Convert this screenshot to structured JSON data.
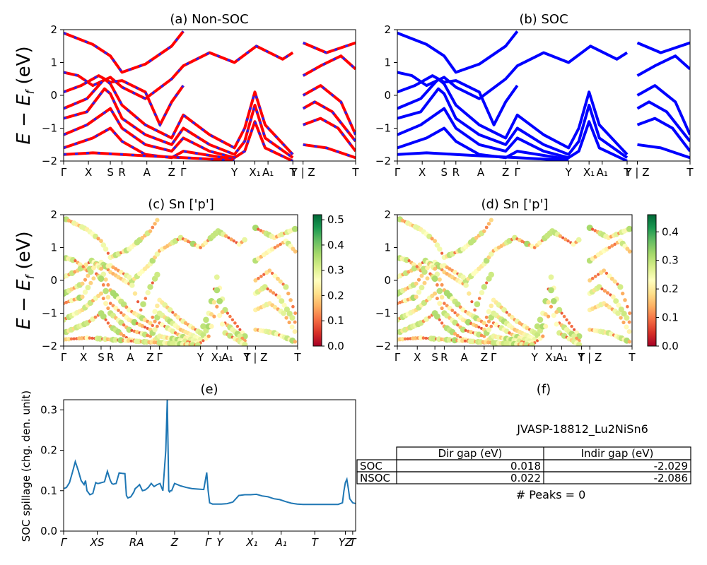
{
  "chart_data": [
    {
      "id": "a",
      "type": "line",
      "title": "(a) Non-SOC",
      "ylabel": "E − E_f (eV)",
      "ylim": [
        -2,
        2
      ],
      "yticks": [
        -2,
        -1,
        0,
        1,
        2
      ],
      "kpath_labels": [
        "Γ",
        "X",
        "S",
        "R",
        "A",
        "Z",
        "Γ",
        "Y",
        "X₁",
        "A₁",
        "T",
        "Y | Z",
        "T"
      ],
      "kpath_x": [
        0,
        0.085,
        0.16,
        0.2,
        0.285,
        0.37,
        0.41,
        0.585,
        0.655,
        0.7,
        0.785,
        0.82,
        1.0
      ],
      "series": [
        {
          "color": "#ff0000",
          "style": "solid",
          "bands": [
            [
              [
                0,
                1.9
              ],
              [
                0.1,
                1.55
              ],
              [
                0.16,
                1.2
              ],
              [
                0.2,
                0.7
              ],
              [
                0.28,
                0.95
              ],
              [
                0.37,
                1.5
              ],
              [
                0.41,
                1.95
              ]
            ],
            [
              [
                0,
                0.7
              ],
              [
                0.05,
                0.6
              ],
              [
                0.1,
                0.3
              ],
              [
                0.16,
                0.55
              ],
              [
                0.2,
                0.25
              ],
              [
                0.28,
                -0.1
              ],
              [
                0.37,
                0.5
              ],
              [
                0.41,
                0.9
              ],
              [
                0.5,
                1.3
              ],
              [
                0.585,
                1.0
              ],
              [
                0.66,
                1.5
              ],
              [
                0.75,
                1.1
              ],
              [
                0.785,
                1.3
              ]
            ],
            [
              [
                0,
                0.1
              ],
              [
                0.06,
                0.3
              ],
              [
                0.12,
                0.6
              ],
              [
                0.16,
                0.4
              ],
              [
                0.2,
                0.45
              ],
              [
                0.28,
                0.1
              ],
              [
                0.33,
                -0.9
              ],
              [
                0.37,
                -0.2
              ],
              [
                0.41,
                0.3
              ]
            ],
            [
              [
                0,
                -0.4
              ],
              [
                0.08,
                -0.1
              ],
              [
                0.14,
                0.5
              ],
              [
                0.16,
                0.35
              ],
              [
                0.2,
                -0.3
              ],
              [
                0.28,
                -0.9
              ],
              [
                0.37,
                -1.3
              ],
              [
                0.41,
                -0.6
              ],
              [
                0.5,
                -1.2
              ],
              [
                0.585,
                -1.6
              ],
              [
                0.62,
                -1.0
              ],
              [
                0.655,
                0.1
              ],
              [
                0.69,
                -0.9
              ],
              [
                0.785,
                -1.8
              ]
            ],
            [
              [
                0,
                -0.7
              ],
              [
                0.08,
                -0.5
              ],
              [
                0.14,
                0.2
              ],
              [
                0.16,
                0.05
              ],
              [
                0.2,
                -0.7
              ],
              [
                0.28,
                -1.2
              ],
              [
                0.37,
                -1.5
              ],
              [
                0.41,
                -1.0
              ],
              [
                0.5,
                -1.5
              ],
              [
                0.585,
                -1.8
              ],
              [
                0.62,
                -1.4
              ],
              [
                0.655,
                -0.3
              ],
              [
                0.69,
                -1.3
              ],
              [
                0.785,
                -1.9
              ]
            ],
            [
              [
                0,
                -1.2
              ],
              [
                0.08,
                -0.9
              ],
              [
                0.16,
                -0.4
              ],
              [
                0.2,
                -1.0
              ],
              [
                0.28,
                -1.5
              ],
              [
                0.37,
                -1.7
              ],
              [
                0.41,
                -1.3
              ],
              [
                0.5,
                -1.7
              ],
              [
                0.585,
                -1.9
              ],
              [
                0.62,
                -1.7
              ],
              [
                0.655,
                -0.8
              ],
              [
                0.69,
                -1.6
              ],
              [
                0.785,
                -2.0
              ]
            ],
            [
              [
                0,
                -1.6
              ],
              [
                0.1,
                -1.3
              ],
              [
                0.16,
                -1.0
              ],
              [
                0.2,
                -1.4
              ],
              [
                0.28,
                -1.8
              ],
              [
                0.37,
                -1.9
              ],
              [
                0.41,
                -1.7
              ],
              [
                0.585,
                -1.95
              ]
            ],
            [
              [
                0,
                -1.8
              ],
              [
                0.1,
                -1.75
              ],
              [
                0.2,
                -1.8
              ],
              [
                0.3,
                -1.85
              ],
              [
                0.41,
                -1.9
              ],
              [
                0.585,
                -1.98
              ]
            ],
            [
              [
                0.82,
                -0.4
              ],
              [
                0.86,
                -0.2
              ],
              [
                0.92,
                -0.5
              ],
              [
                1.0,
                -1.4
              ]
            ],
            [
              [
                0.82,
                -0.9
              ],
              [
                0.88,
                -0.7
              ],
              [
                0.94,
                -1.0
              ],
              [
                1.0,
                -1.7
              ]
            ],
            [
              [
                0.82,
                0.6
              ],
              [
                0.88,
                0.9
              ],
              [
                0.95,
                1.2
              ],
              [
                1.0,
                0.8
              ]
            ],
            [
              [
                0.82,
                0.0
              ],
              [
                0.88,
                0.3
              ],
              [
                0.95,
                -0.2
              ],
              [
                1.0,
                -1.2
              ]
            ],
            [
              [
                0.82,
                -1.5
              ],
              [
                0.9,
                -1.6
              ],
              [
                1.0,
                -1.9
              ]
            ],
            [
              [
                0.82,
                1.6
              ],
              [
                0.9,
                1.3
              ],
              [
                1.0,
                1.6
              ]
            ]
          ]
        }
      ]
    },
    {
      "id": "b",
      "type": "line",
      "title": "(b) SOC",
      "ylim": [
        -2,
        2
      ],
      "yticks": [
        -2,
        -1,
        0,
        1,
        2
      ],
      "kpath_labels": [
        "Γ",
        "X",
        "S",
        "R",
        "A",
        "Z",
        "Γ",
        "Y",
        "X₁",
        "A₁",
        "T",
        "Y | Z",
        "T"
      ],
      "kpath_x": [
        0,
        0.085,
        0.16,
        0.2,
        0.285,
        0.37,
        0.41,
        0.585,
        0.655,
        0.7,
        0.785,
        0.82,
        1.0
      ],
      "series": [
        {
          "color": "#0000ff",
          "style": "solid",
          "bands": "same-as-a"
        }
      ]
    },
    {
      "id": "c",
      "type": "scatter",
      "title": "(c)  Sn ['p']",
      "ylabel": "E − E_f (eV)",
      "ylim": [
        -2,
        2
      ],
      "yticks": [
        -2,
        -1,
        0,
        1,
        2
      ],
      "kpath_labels": [
        "Γ",
        "X",
        "S",
        "R",
        "A",
        "Z",
        "Γ",
        "Y",
        "X₁",
        "A₁",
        "T",
        "Y | Z",
        "T"
      ],
      "kpath_x": [
        0,
        0.085,
        0.16,
        0.2,
        0.285,
        0.37,
        0.41,
        0.585,
        0.655,
        0.7,
        0.785,
        0.82,
        1.0
      ],
      "colorbar": {
        "ticks": [
          0.0,
          0.1,
          0.2,
          0.3,
          0.4,
          0.5
        ],
        "max": 0.52,
        "cmap": "RdYlGn"
      }
    },
    {
      "id": "d",
      "type": "scatter",
      "title": "(d) Sn ['p']",
      "ylim": [
        -2,
        2
      ],
      "yticks": [
        -2,
        -1,
        0,
        1,
        2
      ],
      "kpath_labels": [
        "Γ",
        "X",
        "S",
        "R",
        "A",
        "Z",
        "Γ",
        "Y",
        "X₁",
        "A₁",
        "T",
        "Y | Z",
        "T"
      ],
      "kpath_x": [
        0,
        0.085,
        0.16,
        0.2,
        0.285,
        0.37,
        0.41,
        0.585,
        0.655,
        0.7,
        0.785,
        0.82,
        1.0
      ],
      "colorbar": {
        "ticks": [
          0.0,
          0.1,
          0.2,
          0.3,
          0.4
        ],
        "max": 0.46,
        "cmap": "RdYlGn"
      }
    },
    {
      "id": "e",
      "type": "line",
      "title": "(e)",
      "ylabel": "SOC spillage (chg. den. unit)",
      "ylim": [
        0.0,
        0.325
      ],
      "yticks": [
        0.0,
        0.1,
        0.2,
        0.3
      ],
      "xtick_labels": [
        "Γ",
        "XS",
        "RA",
        "Z",
        "Γ",
        "Y",
        "X₁",
        "A₁",
        "T",
        "YZ",
        "T"
      ],
      "xtick_x": [
        0,
        0.115,
        0.25,
        0.38,
        0.495,
        0.535,
        0.645,
        0.745,
        0.86,
        0.965,
        0.99
      ],
      "series": [
        {
          "color": "#1f77b4",
          "x": [
            0,
            0.01,
            0.02,
            0.03,
            0.04,
            0.05,
            0.06,
            0.07,
            0.075,
            0.08,
            0.09,
            0.1,
            0.11,
            0.115,
            0.12,
            0.13,
            0.14,
            0.15,
            0.16,
            0.165,
            0.17,
            0.18,
            0.19,
            0.2,
            0.21,
            0.215,
            0.22,
            0.23,
            0.24,
            0.245,
            0.25,
            0.26,
            0.27,
            0.28,
            0.29,
            0.3,
            0.31,
            0.32,
            0.33,
            0.34,
            0.35,
            0.355,
            0.36,
            0.363,
            0.366,
            0.37,
            0.38,
            0.39,
            0.4,
            0.42,
            0.44,
            0.46,
            0.48,
            0.49,
            0.495,
            0.5,
            0.51,
            0.52,
            0.54,
            0.56,
            0.58,
            0.6,
            0.62,
            0.64,
            0.66,
            0.68,
            0.7,
            0.72,
            0.74,
            0.76,
            0.78,
            0.8,
            0.82,
            0.84,
            0.86,
            0.88,
            0.9,
            0.92,
            0.94,
            0.955,
            0.96,
            0.965,
            0.97,
            0.975,
            0.98,
            0.99,
            1.0
          ],
          "values": [
            0.105,
            0.108,
            0.12,
            0.145,
            0.172,
            0.15,
            0.125,
            0.115,
            0.125,
            0.1,
            0.09,
            0.093,
            0.12,
            0.118,
            0.118,
            0.12,
            0.122,
            0.148,
            0.125,
            0.118,
            0.116,
            0.118,
            0.144,
            0.143,
            0.142,
            0.088,
            0.082,
            0.085,
            0.096,
            0.105,
            0.108,
            0.115,
            0.1,
            0.102,
            0.108,
            0.118,
            0.11,
            0.115,
            0.118,
            0.1,
            0.2,
            0.325,
            0.1,
            0.097,
            0.1,
            0.1,
            0.118,
            0.115,
            0.112,
            0.108,
            0.105,
            0.104,
            0.103,
            0.145,
            0.1,
            0.07,
            0.067,
            0.067,
            0.067,
            0.068,
            0.072,
            0.088,
            0.09,
            0.09,
            0.091,
            0.087,
            0.085,
            0.08,
            0.078,
            0.073,
            0.069,
            0.067,
            0.066,
            0.066,
            0.066,
            0.066,
            0.066,
            0.066,
            0.066,
            0.07,
            0.1,
            0.12,
            0.128,
            0.105,
            0.08,
            0.07,
            0.068
          ]
        }
      ]
    }
  ],
  "panel_f": {
    "title": "(f)",
    "material": "JVASP-18812_Lu2NiSn6",
    "col_headers": [
      "Dir gap (eV)",
      "Indir gap (eV)"
    ],
    "rows": [
      {
        "label": "SOC",
        "dir": "0.018",
        "indir": "-2.029"
      },
      {
        "label": "NSOC",
        "dir": "0.022",
        "indir": "-2.086"
      }
    ],
    "peaks": "# Peaks = 0"
  }
}
